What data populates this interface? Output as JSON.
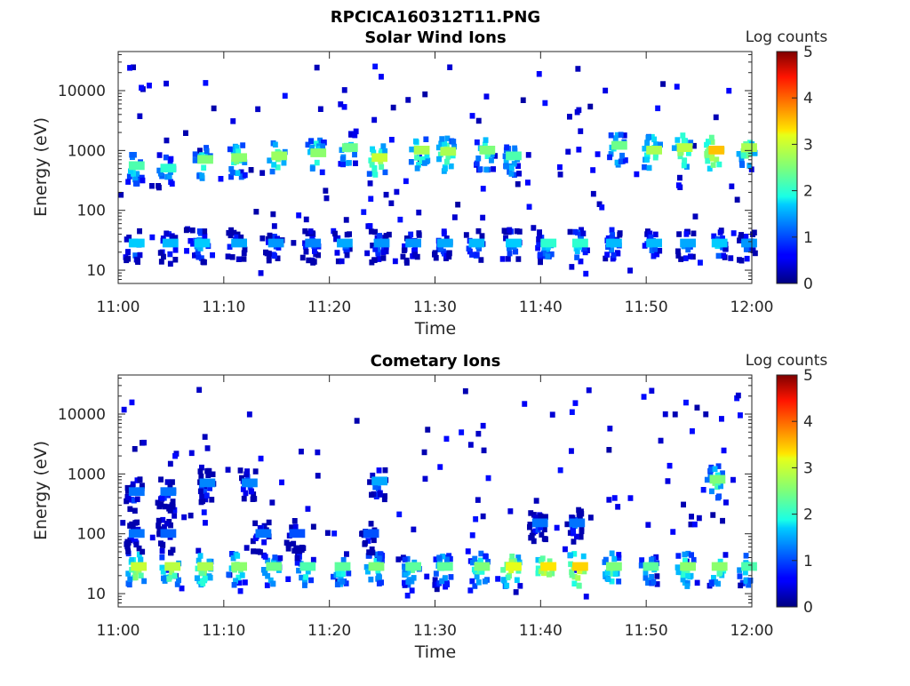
{
  "figure": {
    "title": "RPCICA160312T11.PNG"
  },
  "chart_data": [
    {
      "type": "heatmap",
      "title": "Solar Wind Ions",
      "xlabel": "Time",
      "ylabel": "Energy (eV)",
      "yscale": "log",
      "xticks": [
        "11:00",
        "11:10",
        "11:20",
        "11:30",
        "11:40",
        "11:50",
        "12:00"
      ],
      "yticks": [
        "10",
        "100",
        "1000",
        "10000"
      ],
      "xlim": [
        "11:00",
        "12:00"
      ],
      "ylim": [
        6,
        45000
      ],
      "colorbar": {
        "label": "Log counts",
        "range": [
          0,
          5
        ],
        "ticks": [
          "0",
          "1",
          "2",
          "3",
          "4",
          "5"
        ],
        "colormap": "jet"
      },
      "bursts": [
        {
          "t": 1.3,
          "e": 550,
          "v": 2.2
        },
        {
          "t": 4.3,
          "e": 500,
          "v": 2.0
        },
        {
          "t": 7.8,
          "e": 700,
          "v": 2.5
        },
        {
          "t": 11.0,
          "e": 750,
          "v": 2.6
        },
        {
          "t": 14.8,
          "e": 800,
          "v": 2.7
        },
        {
          "t": 18.5,
          "e": 900,
          "v": 2.6
        },
        {
          "t": 21.5,
          "e": 1100,
          "v": 2.4
        },
        {
          "t": 24.3,
          "e": 750,
          "v": 3.0
        },
        {
          "t": 28.3,
          "e": 1000,
          "v": 2.8
        },
        {
          "t": 30.8,
          "e": 950,
          "v": 2.8
        },
        {
          "t": 34.5,
          "e": 1000,
          "v": 2.5
        },
        {
          "t": 37.0,
          "e": 800,
          "v": 2.2
        },
        {
          "t": 47.0,
          "e": 1200,
          "v": 2.4
        },
        {
          "t": 50.3,
          "e": 1000,
          "v": 2.8
        },
        {
          "t": 53.2,
          "e": 1100,
          "v": 2.9
        },
        {
          "t": 56.2,
          "e": 1000,
          "v": 3.5
        },
        {
          "t": 59.3,
          "e": 1100,
          "v": 2.8
        },
        {
          "t": 1.3,
          "e": 28,
          "v": 1.7
        },
        {
          "t": 4.5,
          "e": 28,
          "v": 1.6
        },
        {
          "t": 7.5,
          "e": 28,
          "v": 1.7
        },
        {
          "t": 11.0,
          "e": 28,
          "v": 1.5
        },
        {
          "t": 14.5,
          "e": 28,
          "v": 1.4
        },
        {
          "t": 18.0,
          "e": 28,
          "v": 1.3
        },
        {
          "t": 21.0,
          "e": 28,
          "v": 1.5
        },
        {
          "t": 24.5,
          "e": 28,
          "v": 1.4
        },
        {
          "t": 27.5,
          "e": 28,
          "v": 1.4
        },
        {
          "t": 30.5,
          "e": 28,
          "v": 1.5
        },
        {
          "t": 33.5,
          "e": 28,
          "v": 1.6
        },
        {
          "t": 37.0,
          "e": 28,
          "v": 1.7
        },
        {
          "t": 40.3,
          "e": 28,
          "v": 2.0
        },
        {
          "t": 43.3,
          "e": 28,
          "v": 2.0
        },
        {
          "t": 46.5,
          "e": 28,
          "v": 1.6
        },
        {
          "t": 50.3,
          "e": 28,
          "v": 1.6
        },
        {
          "t": 53.5,
          "e": 28,
          "v": 1.5
        },
        {
          "t": 56.5,
          "e": 28,
          "v": 1.7
        },
        {
          "t": 59.3,
          "e": 28,
          "v": 1.4
        }
      ]
    },
    {
      "type": "heatmap",
      "title": "Cometary Ions",
      "xlabel": "Time",
      "ylabel": "Energy (eV)",
      "yscale": "log",
      "xticks": [
        "11:00",
        "11:10",
        "11:20",
        "11:30",
        "11:40",
        "11:50",
        "12:00"
      ],
      "yticks": [
        "10",
        "100",
        "1000",
        "10000"
      ],
      "xlim": [
        "11:00",
        "12:00"
      ],
      "ylim": [
        6,
        45000
      ],
      "colorbar": {
        "label": "Log counts",
        "range": [
          0,
          5
        ],
        "ticks": [
          "0",
          "1",
          "2",
          "3",
          "4",
          "5"
        ],
        "colormap": "jet"
      },
      "bursts": [
        {
          "t": 1.5,
          "e": 28,
          "v": 3.0
        },
        {
          "t": 4.7,
          "e": 28,
          "v": 2.9
        },
        {
          "t": 7.8,
          "e": 28,
          "v": 2.8
        },
        {
          "t": 11.0,
          "e": 28,
          "v": 2.6
        },
        {
          "t": 14.3,
          "e": 28,
          "v": 2.4
        },
        {
          "t": 17.5,
          "e": 28,
          "v": 2.2
        },
        {
          "t": 20.8,
          "e": 28,
          "v": 2.3
        },
        {
          "t": 24.0,
          "e": 28,
          "v": 2.5
        },
        {
          "t": 27.5,
          "e": 28,
          "v": 2.3
        },
        {
          "t": 30.5,
          "e": 28,
          "v": 2.3
        },
        {
          "t": 34.0,
          "e": 28,
          "v": 2.5
        },
        {
          "t": 37.0,
          "e": 28,
          "v": 3.2
        },
        {
          "t": 40.3,
          "e": 28,
          "v": 3.3
        },
        {
          "t": 43.3,
          "e": 28,
          "v": 3.4
        },
        {
          "t": 46.5,
          "e": 28,
          "v": 2.5
        },
        {
          "t": 50.0,
          "e": 28,
          "v": 2.3
        },
        {
          "t": 53.5,
          "e": 28,
          "v": 2.6
        },
        {
          "t": 56.5,
          "e": 28,
          "v": 2.6
        },
        {
          "t": 59.3,
          "e": 28,
          "v": 2.2
        },
        {
          "t": 1.3,
          "e": 100,
          "v": 1.2
        },
        {
          "t": 4.3,
          "e": 100,
          "v": 1.1
        },
        {
          "t": 13.3,
          "e": 100,
          "v": 1.2
        },
        {
          "t": 16.5,
          "e": 100,
          "v": 1.0
        },
        {
          "t": 23.5,
          "e": 100,
          "v": 1.0
        },
        {
          "t": 39.5,
          "e": 150,
          "v": 1.2
        },
        {
          "t": 43.0,
          "e": 150,
          "v": 1.2
        },
        {
          "t": 1.3,
          "e": 500,
          "v": 1.2
        },
        {
          "t": 4.3,
          "e": 500,
          "v": 1.2
        },
        {
          "t": 8.0,
          "e": 700,
          "v": 1.3
        },
        {
          "t": 12.0,
          "e": 700,
          "v": 1.3
        },
        {
          "t": 24.3,
          "e": 750,
          "v": 1.5
        },
        {
          "t": 56.3,
          "e": 800,
          "v": 2.5
        }
      ]
    }
  ]
}
